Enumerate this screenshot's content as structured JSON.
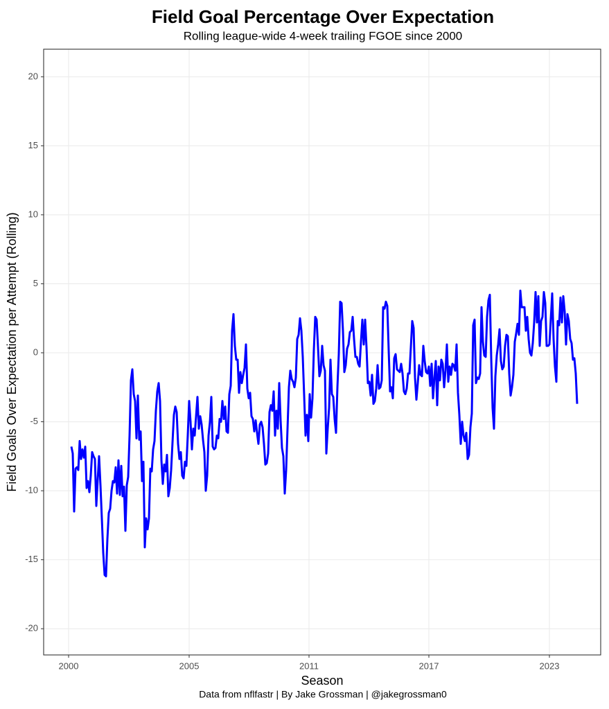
{
  "chart_data": {
    "type": "line",
    "title": "Field Goal Percentage Over Expectation",
    "subtitle": "Rolling league-wide 4-week trailing FGOE since 2000",
    "x_label": "Season",
    "y_label": "Field Goals Over Expectation per Attempt (Rolling)",
    "caption": "Data from nflfastr | By Jake Grossman | @jakegrossman0",
    "grid": true,
    "xlim": [
      -20,
      382
    ],
    "ylim": [
      -21.9,
      22.0
    ],
    "xticks": [
      {
        "value": -2,
        "label": "2000"
      },
      {
        "value": 85,
        "label": "2005"
      },
      {
        "value": 171.5,
        "label": "2011"
      },
      {
        "value": 258,
        "label": "2017"
      },
      {
        "value": 345,
        "label": "2023"
      }
    ],
    "yticks": [
      -20,
      -15,
      -10,
      -5,
      0,
      5,
      10,
      15,
      20
    ],
    "x": [
      0,
      1,
      2,
      3,
      4,
      5,
      6,
      7,
      8,
      9,
      10,
      11,
      12,
      13,
      14,
      15,
      16,
      17,
      18,
      19,
      20,
      21,
      22,
      23,
      24,
      25,
      26,
      27,
      28,
      29,
      30,
      31,
      32,
      33,
      34,
      35,
      36,
      37,
      38,
      39,
      40,
      41,
      42,
      43,
      44,
      45,
      46,
      47,
      48,
      49,
      50,
      51,
      52,
      53,
      54,
      55,
      56,
      57,
      58,
      59,
      60,
      61,
      62,
      63,
      64,
      65,
      66,
      67,
      68,
      69,
      70,
      71,
      72,
      73,
      74,
      75,
      76,
      77,
      78,
      79,
      80,
      81,
      82,
      83,
      84,
      85,
      86,
      87,
      88,
      89,
      90,
      91,
      92,
      93,
      94,
      95,
      96,
      97,
      98,
      99,
      100,
      101,
      102,
      103,
      104,
      105,
      106,
      107,
      108,
      109,
      110,
      111,
      112,
      113,
      114,
      115,
      116,
      117,
      118,
      119,
      120,
      121,
      122,
      123,
      124,
      125,
      126,
      127,
      128,
      129,
      130,
      131,
      132,
      133,
      134,
      135,
      136,
      137,
      138,
      139,
      140,
      141,
      142,
      143,
      144,
      145,
      146,
      147,
      148,
      149,
      150,
      151,
      152,
      153,
      154,
      155,
      156,
      157,
      158,
      159,
      160,
      161,
      162,
      163,
      164,
      165,
      166,
      167,
      168,
      169,
      170,
      171,
      172,
      173,
      174,
      175,
      176,
      177,
      178,
      179,
      180,
      181,
      182,
      183,
      184,
      185,
      186,
      187,
      188,
      189,
      190,
      191,
      192,
      193,
      194,
      195,
      196,
      197,
      198,
      199,
      200,
      201,
      202,
      203,
      204,
      205,
      206,
      207,
      208,
      209,
      210,
      211,
      212,
      213,
      214,
      215,
      216,
      217,
      218,
      219,
      220,
      221,
      222,
      223,
      224,
      225,
      226,
      227,
      228,
      229,
      230,
      231,
      232,
      233,
      234,
      235,
      236,
      237,
      238,
      239,
      240,
      241,
      242,
      243,
      244,
      245,
      246,
      247,
      248,
      249,
      250,
      251,
      252,
      253,
      254,
      255,
      256,
      257,
      258,
      259,
      260,
      261,
      262,
      263,
      264,
      265,
      266,
      267,
      268,
      269,
      270,
      271,
      272,
      273,
      274,
      275,
      276,
      277,
      278,
      279,
      280,
      281,
      282,
      283,
      284,
      285,
      286,
      287,
      288,
      289,
      290,
      291,
      292,
      293,
      294,
      295,
      296,
      297,
      298,
      299,
      300,
      301,
      302,
      303,
      304,
      305,
      306,
      307,
      308,
      309,
      310,
      311,
      312,
      313,
      314,
      315,
      316,
      317,
      318,
      319,
      320,
      321,
      322,
      323,
      324,
      325,
      326,
      327,
      328,
      329,
      330,
      331,
      332,
      333,
      334,
      335,
      336,
      337,
      338,
      339,
      340,
      341,
      342,
      343,
      344,
      345,
      346,
      347,
      348,
      349,
      350,
      351,
      352,
      353,
      354,
      355,
      356,
      357,
      358,
      359,
      360,
      361,
      362,
      363,
      364,
      365
    ],
    "series": [
      {
        "color": "#0000ff",
        "values": [
          -6.8,
          -7.3,
          -11.5,
          -8.4,
          -8.3,
          -8.5,
          -6.4,
          -7.7,
          -7.0,
          -7.6,
          -6.8,
          -9.8,
          -9.3,
          -10.1,
          -8.9,
          -7.2,
          -7.5,
          -7.7,
          -11.1,
          -9.2,
          -7.5,
          -9.6,
          -12.0,
          -14.5,
          -16.1,
          -16.2,
          -13.5,
          -11.6,
          -11.3,
          -10.0,
          -9.3,
          -9.4,
          -8.3,
          -10.2,
          -7.8,
          -10.3,
          -8.2,
          -10.4,
          -9.7,
          -12.9,
          -9.6,
          -9.0,
          -6.0,
          -2.0,
          -1.2,
          -3.0,
          -3.5,
          -6.2,
          -3.1,
          -6.3,
          -5.7,
          -9.3,
          -7.9,
          -14.1,
          -12.0,
          -12.8,
          -12.0,
          -8.4,
          -8.6,
          -7.0,
          -6.4,
          -4.2,
          -2.8,
          -2.2,
          -3.5,
          -7.8,
          -9.5,
          -8.1,
          -8.6,
          -7.4,
          -10.4,
          -9.8,
          -8.5,
          -6.5,
          -4.5,
          -3.9,
          -4.3,
          -6.6,
          -7.7,
          -7.2,
          -8.9,
          -9.1,
          -7.9,
          -8.2,
          -6.0,
          -3.5,
          -5.0,
          -7.0,
          -5.5,
          -6.0,
          -4.6,
          -3.2,
          -5.5,
          -4.6,
          -5.2,
          -6.3,
          -7.2,
          -10.0,
          -8.9,
          -6.0,
          -5.0,
          -3.2,
          -6.8,
          -7.0,
          -6.9,
          -6.0,
          -6.2,
          -4.8,
          -5.0,
          -3.5,
          -4.8,
          -3.9,
          -5.7,
          -5.8,
          -3.0,
          -2.4,
          1.6,
          2.8,
          0.5,
          -0.5,
          -0.5,
          -2.9,
          -1.4,
          -2.2,
          -1.6,
          -1.1,
          0.6,
          -2.6,
          -3.3,
          -2.9,
          -4.6,
          -4.8,
          -5.7,
          -4.9,
          -5.8,
          -6.6,
          -5.2,
          -5.0,
          -5.4,
          -6.6,
          -8.1,
          -8.0,
          -7.3,
          -4.3,
          -3.8,
          -4.2,
          -2.8,
          -6.0,
          -4.2,
          -5.5,
          -2.2,
          -4.9,
          -6.9,
          -7.5,
          -10.2,
          -8.5,
          -5.5,
          -2.5,
          -1.3,
          -1.9,
          -2.1,
          -2.5,
          -1.8,
          1.0,
          1.3,
          2.5,
          1.6,
          -0.3,
          -3.1,
          -6.0,
          -4.5,
          -6.4,
          -3.0,
          -4.7,
          -3.3,
          0.2,
          2.6,
          2.4,
          0.4,
          -1.7,
          -1.3,
          0.5,
          -0.9,
          -1.3,
          -7.3,
          -5.5,
          -4.0,
          -0.5,
          -3.0,
          -3.2,
          -4.8,
          -5.8,
          -2.5,
          -0.1,
          3.7,
          3.6,
          1.6,
          -1.4,
          -0.9,
          0.3,
          0.6,
          1.5,
          1.6,
          2.6,
          1.0,
          -0.3,
          -0.3,
          -0.8,
          -1.0,
          0.8,
          2.4,
          0.6,
          2.4,
          0.4,
          -2.2,
          -2.1,
          -3.1,
          -1.6,
          -3.7,
          -3.5,
          -2.6,
          -0.9,
          -2.6,
          -2.5,
          -2.0,
          3.3,
          3.2,
          3.7,
          3.4,
          0.2,
          -2.8,
          -2.5,
          -3.3,
          -0.4,
          -0.1,
          -1.2,
          -1.3,
          -1.4,
          -0.8,
          -1.5,
          -2.8,
          -3.0,
          -2.6,
          -1.5,
          -1.5,
          0.4,
          2.3,
          1.8,
          -1.8,
          -3.4,
          -2.2,
          -0.9,
          -1.6,
          -1.7,
          0.5,
          -0.6,
          -1.4,
          -1.5,
          -1.0,
          -2.4,
          -0.8,
          -3.3,
          -1.8,
          -0.6,
          -3.8,
          -1.0,
          -2.0,
          -0.5,
          -0.8,
          -2.5,
          -1.3,
          0.6,
          -2.1,
          -1.0,
          -1.6,
          -0.8,
          -0.9,
          -1.3,
          0.6,
          -2.9,
          -4.5,
          -6.6,
          -5.0,
          -6.0,
          -6.4,
          -5.8,
          -7.7,
          -7.4,
          -5.4,
          -4.4,
          2.0,
          2.4,
          -2.2,
          -1.8,
          -1.9,
          -1.5,
          3.3,
          0.8,
          -0.2,
          -0.3,
          2.6,
          3.8,
          4.2,
          -0.4,
          -4.0,
          -5.5,
          -1.7,
          -0.2,
          0.6,
          1.7,
          -0.6,
          -1.2,
          -1.0,
          0.5,
          1.3,
          1.2,
          -1.5,
          -3.1,
          -2.5,
          -1.6,
          0.8,
          1.4,
          2.1,
          1.3,
          4.5,
          3.3,
          3.3,
          3.3,
          1.6,
          2.6,
          1.0,
          0.0,
          -0.2,
          0.7,
          2.2,
          4.4,
          2.2,
          4.1,
          0.5,
          2.3,
          2.6,
          4.4,
          3.6,
          0.5,
          0.5,
          0.6,
          2.4,
          4.3,
          1.0,
          -1.0,
          -2.1,
          2.3,
          2.0,
          4.0,
          2.2,
          4.1,
          3.0,
          0.6,
          2.8,
          2.3,
          1.0,
          0.7,
          -0.5,
          -0.4,
          -1.5,
          -3.7
        ]
      }
    ]
  }
}
